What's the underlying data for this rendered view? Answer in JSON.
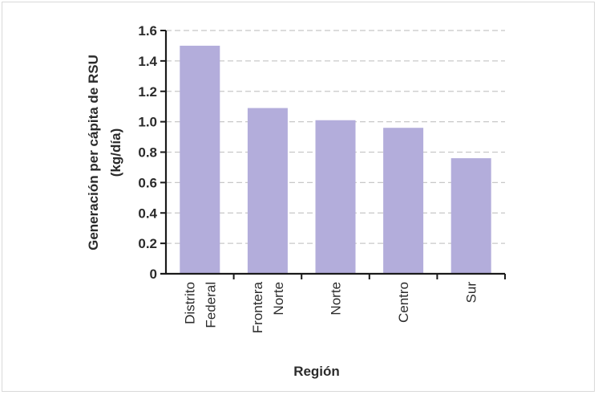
{
  "chart_data": {
    "type": "bar",
    "categories": [
      [
        "Distrito",
        "Federal"
      ],
      [
        "Frontera",
        "Norte"
      ],
      [
        "Norte"
      ],
      [
        "Centro"
      ],
      [
        "Sur"
      ]
    ],
    "values": [
      1.5,
      1.09,
      1.01,
      0.96,
      0.76
    ],
    "ylim": [
      0,
      1.6
    ],
    "yticks": [
      "0",
      "0.2",
      "0.4",
      "0.6",
      "0.8",
      "1.0",
      "1.2",
      "1.4",
      "1.6"
    ],
    "ylabel": [
      "Generación per cápita de RSU",
      "(kg/día)"
    ],
    "xlabel": "Región",
    "grid": "dashed horizontal",
    "colors": {
      "bar": "#b3addb",
      "axis": "#1a1a1a",
      "grid": "#c8c8c8"
    }
  }
}
